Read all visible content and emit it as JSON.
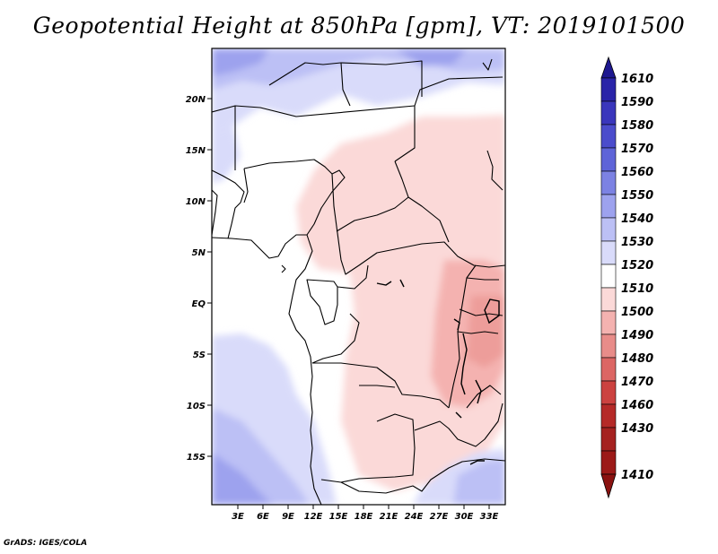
{
  "title": "Geopotential Height at 850hPa [gpm], VT: 2019101500",
  "credit": "GrADS: IGES/COLA",
  "map": {
    "lat_labels": [
      "20N",
      "15N",
      "10N",
      "5N",
      "EQ",
      "5S",
      "10S",
      "15S"
    ],
    "lon_labels": [
      "3E",
      "6E",
      "9E",
      "12E",
      "15E",
      "18E",
      "21E",
      "24E",
      "27E",
      "30E",
      "33E"
    ]
  },
  "colorbar": {
    "levels": [
      "1610",
      "1590",
      "1580",
      "1570",
      "1560",
      "1550",
      "1540",
      "1530",
      "1520",
      "1510",
      "1500",
      "1490",
      "1480",
      "1470",
      "1460",
      "1430",
      "1410"
    ],
    "colors": [
      "#1e1890",
      "#2a24a8",
      "#3a36bc",
      "#4b4ccc",
      "#5e64d8",
      "#7c82e3",
      "#9da2ee",
      "#bcc0f5",
      "#d9dbfa",
      "#ffffff",
      "#fbd9d8",
      "#f4b2b0",
      "#e88c89",
      "#dc6664",
      "#cc4240",
      "#b52a28",
      "#9c1a18"
    ]
  },
  "fields": {
    "color_low": "#c7392d",
    "color_high": "#3b2fa6",
    "color_neutral": "#ffffff"
  }
}
